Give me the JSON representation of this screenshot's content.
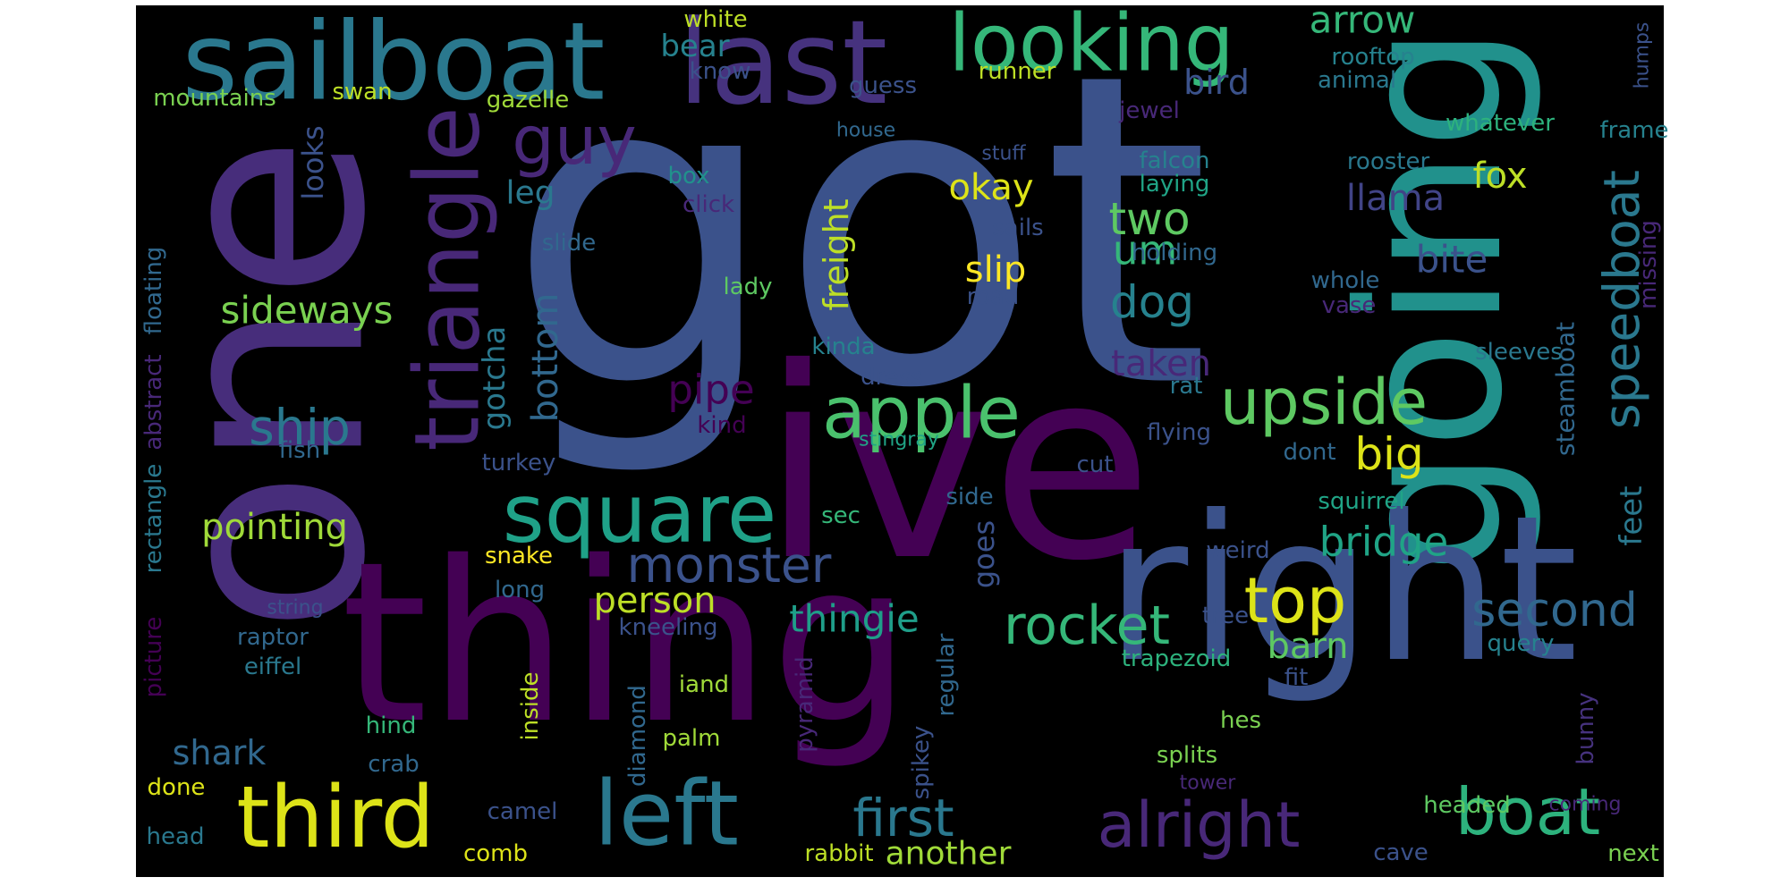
{
  "wordcloud": {
    "background": "#000000",
    "words": [
      {
        "text": "got",
        "color": "#3b528b"
      },
      {
        "text": "one",
        "color": "#472d7b"
      },
      {
        "text": "ive",
        "color": "#440154"
      },
      {
        "text": "going",
        "color": "#21918c"
      },
      {
        "text": "thing",
        "color": "#440154"
      },
      {
        "text": "right",
        "color": "#3b528b"
      },
      {
        "text": "sailboat",
        "color": "#2a788e"
      },
      {
        "text": "last",
        "color": "#46327e"
      },
      {
        "text": "looking",
        "color": "#35b779"
      },
      {
        "text": "triangle",
        "color": "#482878"
      },
      {
        "text": "square",
        "color": "#1fa188"
      },
      {
        "text": "third",
        "color": "#dde318"
      },
      {
        "text": "left",
        "color": "#2a788e"
      },
      {
        "text": "apple",
        "color": "#4ac16d"
      },
      {
        "text": "upside",
        "color": "#5ec962"
      },
      {
        "text": "guy",
        "color": "#482878"
      },
      {
        "text": "top",
        "color": "#dde318"
      },
      {
        "text": "monster",
        "color": "#3b528b"
      },
      {
        "text": "rocket",
        "color": "#35b779"
      },
      {
        "text": "boat",
        "color": "#2db27d"
      },
      {
        "text": "alright",
        "color": "#482878"
      },
      {
        "text": "speedboat",
        "color": "#2a788e"
      },
      {
        "text": "second",
        "color": "#31688e"
      },
      {
        "text": "first",
        "color": "#2a788e"
      },
      {
        "text": "bridge",
        "color": "#20a486"
      },
      {
        "text": "two",
        "color": "#5ec962"
      },
      {
        "text": "dog",
        "color": "#26828e"
      },
      {
        "text": "ship",
        "color": "#2a788e"
      },
      {
        "text": "sideways",
        "color": "#7ad151"
      },
      {
        "text": "arrow",
        "color": "#35b779"
      },
      {
        "text": "thingie",
        "color": "#1f9e89"
      },
      {
        "text": "person",
        "color": "#bddf26"
      },
      {
        "text": "okay",
        "color": "#dde318"
      },
      {
        "text": "slip",
        "color": "#fde725"
      },
      {
        "text": "pointing",
        "color": "#a0da39"
      },
      {
        "text": "bottom",
        "color": "#31688e"
      },
      {
        "text": "freight",
        "color": "#bddf26"
      },
      {
        "text": "big",
        "color": "#dde318"
      },
      {
        "text": "bite",
        "color": "#3b528b"
      },
      {
        "text": "um",
        "color": "#35b779"
      },
      {
        "text": "llama",
        "color": "#414487"
      },
      {
        "text": "taken",
        "color": "#482878"
      },
      {
        "text": "pipe",
        "color": "#440154"
      },
      {
        "text": "gotcha",
        "color": "#2a788e"
      },
      {
        "text": "barn",
        "color": "#5ec962"
      },
      {
        "text": "feet",
        "color": "#2a788e"
      },
      {
        "text": "fox",
        "color": "#bddf26"
      },
      {
        "text": "bird",
        "color": "#3b528b"
      },
      {
        "text": "goes",
        "color": "#3b528b"
      },
      {
        "text": "shark",
        "color": "#31688e"
      },
      {
        "text": "another",
        "color": "#a0da39"
      },
      {
        "text": "looks",
        "color": "#3b528b"
      },
      {
        "text": "bear",
        "color": "#26828e"
      },
      {
        "text": "leg",
        "color": "#2a788e"
      },
      {
        "text": "steamboat",
        "color": "#31688e"
      },
      {
        "text": "missing",
        "color": "#482878"
      },
      {
        "text": "frame",
        "color": "#26828e"
      },
      {
        "text": "white",
        "color": "#bddf26"
      },
      {
        "text": "know",
        "color": "#3b528b"
      },
      {
        "text": "guess",
        "color": "#3b528b"
      },
      {
        "text": "runner",
        "color": "#bddf26"
      },
      {
        "text": "rooftop",
        "color": "#26828e"
      },
      {
        "text": "animal",
        "color": "#2a788e"
      },
      {
        "text": "humps",
        "color": "#3b528b"
      },
      {
        "text": "swan",
        "color": "#bddf26"
      },
      {
        "text": "gazelle",
        "color": "#a0da39"
      },
      {
        "text": "mountains",
        "color": "#7ad151"
      },
      {
        "text": "jewel",
        "color": "#482878"
      },
      {
        "text": "house",
        "color": "#31688e"
      },
      {
        "text": "whatever",
        "color": "#2db27d"
      },
      {
        "text": "stuff",
        "color": "#3b528b"
      },
      {
        "text": "falcon",
        "color": "#26828e"
      },
      {
        "text": "rooster",
        "color": "#2a788e"
      },
      {
        "text": "laying",
        "color": "#20a486"
      },
      {
        "text": "box",
        "color": "#21918c"
      },
      {
        "text": "click",
        "color": "#482878"
      },
      {
        "text": "sails",
        "color": "#3b528b"
      },
      {
        "text": "holding",
        "color": "#31688e"
      },
      {
        "text": "slide",
        "color": "#31688e"
      },
      {
        "text": "lady",
        "color": "#5ec962"
      },
      {
        "text": "road",
        "color": "#3b528b"
      },
      {
        "text": "whole",
        "color": "#31688e"
      },
      {
        "text": "vase",
        "color": "#482878"
      },
      {
        "text": "kinda",
        "color": "#26828e"
      },
      {
        "text": "sleeves",
        "color": "#2a788e"
      },
      {
        "text": "dress",
        "color": "#3b528b"
      },
      {
        "text": "rat",
        "color": "#2a788e"
      },
      {
        "text": "kind",
        "color": "#440154"
      },
      {
        "text": "stingray",
        "color": "#20a486"
      },
      {
        "text": "flying",
        "color": "#3b528b"
      },
      {
        "text": "dont",
        "color": "#31688e"
      },
      {
        "text": "fish",
        "color": "#31688e"
      },
      {
        "text": "turkey",
        "color": "#3b528b"
      },
      {
        "text": "cut",
        "color": "#3b528b"
      },
      {
        "text": "side",
        "color": "#31688e"
      },
      {
        "text": "squirrel",
        "color": "#20a486"
      },
      {
        "text": "floating",
        "color": "#31688e"
      },
      {
        "text": "abstract",
        "color": "#482878"
      },
      {
        "text": "rectangle",
        "color": "#2a788e"
      },
      {
        "text": "picture",
        "color": "#440154"
      },
      {
        "text": "sec",
        "color": "#35b779"
      },
      {
        "text": "weird",
        "color": "#3b528b"
      },
      {
        "text": "snake",
        "color": "#fde725"
      },
      {
        "text": "long",
        "color": "#31688e"
      },
      {
        "text": "string",
        "color": "#3b528b"
      },
      {
        "text": "raptor",
        "color": "#31688e"
      },
      {
        "text": "eiffel",
        "color": "#2a788e"
      },
      {
        "text": "kneeling",
        "color": "#3b528b"
      },
      {
        "text": "inside",
        "color": "#bddf26"
      },
      {
        "text": "tree",
        "color": "#3b528b"
      },
      {
        "text": "query",
        "color": "#26828e"
      },
      {
        "text": "trapezoid",
        "color": "#2db27d"
      },
      {
        "text": "fit",
        "color": "#3b528b"
      },
      {
        "text": "iand",
        "color": "#a0da39"
      },
      {
        "text": "diamond",
        "color": "#31688e"
      },
      {
        "text": "pyramid",
        "color": "#482878"
      },
      {
        "text": "regular",
        "color": "#31688e"
      },
      {
        "text": "spikey",
        "color": "#3b528b"
      },
      {
        "text": "hind",
        "color": "#35b779"
      },
      {
        "text": "hes",
        "color": "#7ad151"
      },
      {
        "text": "palm",
        "color": "#a0da39"
      },
      {
        "text": "crab",
        "color": "#31688e"
      },
      {
        "text": "splits",
        "color": "#7ad151"
      },
      {
        "text": "bunny",
        "color": "#46327e"
      },
      {
        "text": "done",
        "color": "#dde318"
      },
      {
        "text": "tower",
        "color": "#482878"
      },
      {
        "text": "camel",
        "color": "#3b528b"
      },
      {
        "text": "headed",
        "color": "#5ec962"
      },
      {
        "text": "coming",
        "color": "#482878"
      },
      {
        "text": "head",
        "color": "#2a788e"
      },
      {
        "text": "comb",
        "color": "#dde318"
      },
      {
        "text": "rabbit",
        "color": "#bddf26"
      },
      {
        "text": "cave",
        "color": "#3b528b"
      },
      {
        "text": "next",
        "color": "#7ad151"
      }
    ]
  }
}
